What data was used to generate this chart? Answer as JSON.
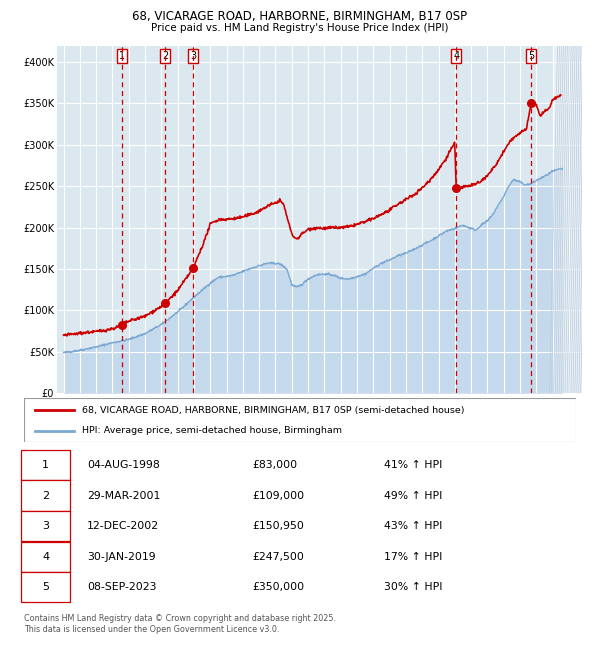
{
  "title1": "68, VICARAGE ROAD, HARBORNE, BIRMINGHAM, B17 0SP",
  "title2": "Price paid vs. HM Land Registry's House Price Index (HPI)",
  "legend1": "68, VICARAGE ROAD, HARBORNE, BIRMINGHAM, B17 0SP (semi-detached house)",
  "legend2": "HPI: Average price, semi-detached house, Birmingham",
  "footer": "Contains HM Land Registry data © Crown copyright and database right 2025.\nThis data is licensed under the Open Government Licence v3.0.",
  "price_color": "#cc0000",
  "hpi_color": "#7aa8d2",
  "hpi_fill_color": "#c5d9ec",
  "grid_color": "#ffffff",
  "plot_bg": "#dce8f0",
  "vline_color": "#cc0000",
  "sale_dates_num": [
    1998.58,
    2001.24,
    2002.94,
    2019.08,
    2023.68
  ],
  "sale_prices": [
    83000,
    109000,
    150950,
    247500,
    350000
  ],
  "sale_labels": [
    "1",
    "2",
    "3",
    "4",
    "5"
  ],
  "table_rows": [
    [
      "1",
      "04-AUG-1998",
      "£83,000",
      "41% ↑ HPI"
    ],
    [
      "2",
      "29-MAR-2001",
      "£109,000",
      "49% ↑ HPI"
    ],
    [
      "3",
      "12-DEC-2002",
      "£150,950",
      "43% ↑ HPI"
    ],
    [
      "4",
      "30-JAN-2019",
      "£247,500",
      "17% ↑ HPI"
    ],
    [
      "5",
      "08-SEP-2023",
      "£350,000",
      "30% ↑ HPI"
    ]
  ],
  "ylim": [
    0,
    420000
  ],
  "yticks": [
    0,
    50000,
    100000,
    150000,
    200000,
    250000,
    300000,
    350000,
    400000
  ],
  "xlim_start": 1994.6,
  "xlim_end": 2026.8,
  "xticks": [
    1995,
    1996,
    1997,
    1998,
    1999,
    2000,
    2001,
    2002,
    2003,
    2004,
    2005,
    2006,
    2007,
    2008,
    2009,
    2010,
    2011,
    2012,
    2013,
    2014,
    2015,
    2016,
    2017,
    2018,
    2019,
    2020,
    2021,
    2022,
    2023,
    2024,
    2025,
    2026
  ]
}
